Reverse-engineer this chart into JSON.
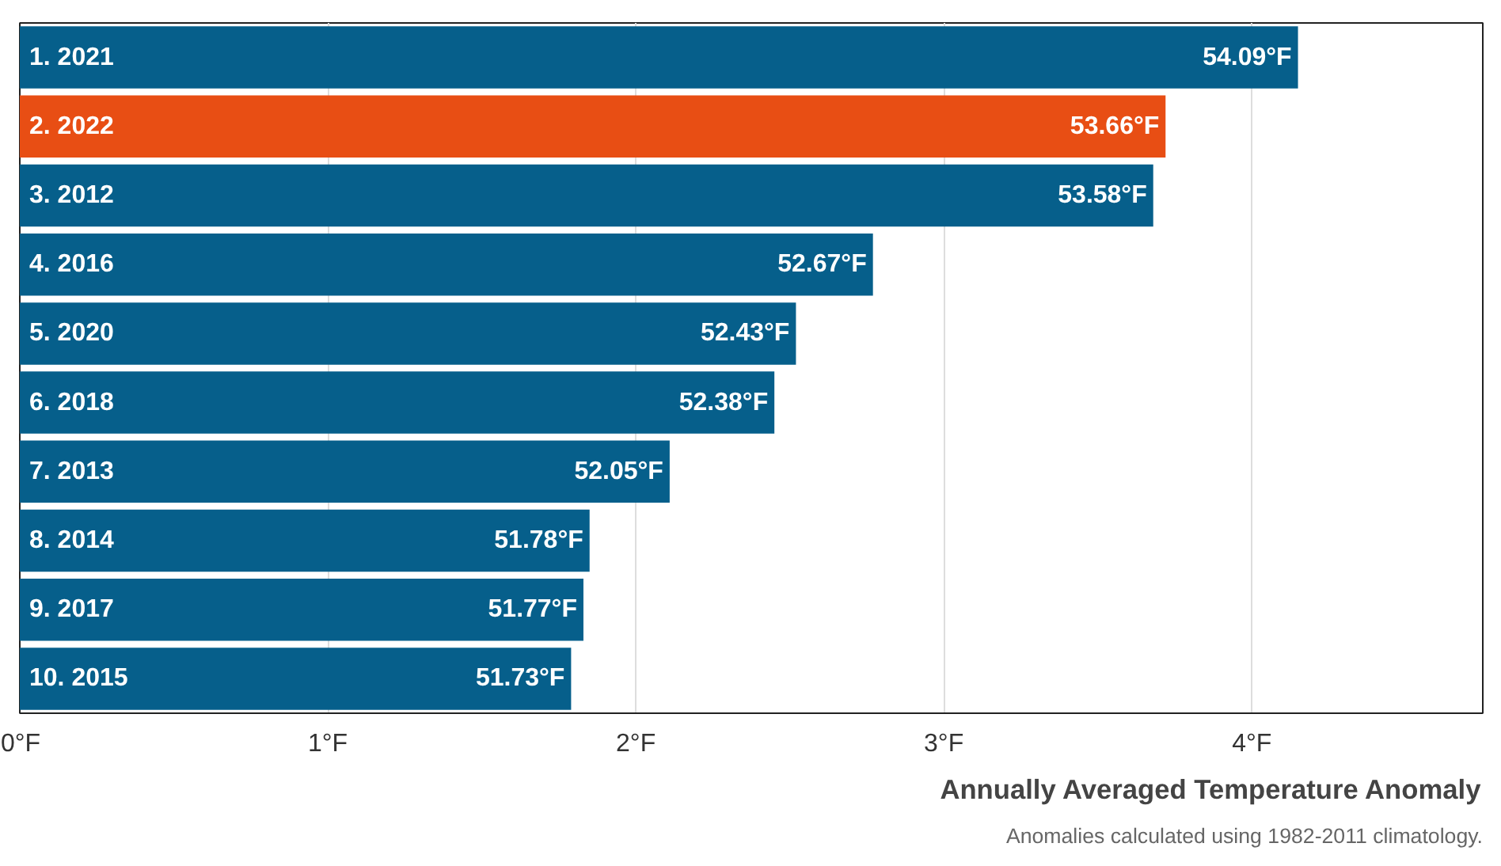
{
  "chart_data": {
    "type": "bar",
    "orientation": "horizontal",
    "categories": [
      "1.  2021",
      "2.  2022",
      "3.  2012",
      "4.  2016",
      "5.  2020",
      "6.  2018",
      "7.  2013",
      "8.  2014",
      "9.  2017",
      "10.  2015"
    ],
    "values": [
      4.15,
      3.72,
      3.68,
      2.77,
      2.52,
      2.45,
      2.11,
      1.85,
      1.83,
      1.79
    ],
    "colors": [
      "#065f8b",
      "#e84e14",
      "#065f8b",
      "#065f8b",
      "#065f8b",
      "#065f8b",
      "#065f8b",
      "#065f8b",
      "#065f8b",
      "#065f8b"
    ],
    "xlabel": "Annually Averaged Temperature Anomaly",
    "xlim": [
      0,
      4.75
    ],
    "xticks": [
      {
        "value": 0,
        "label": "0°F"
      },
      {
        "value": 1,
        "label": "1°F"
      },
      {
        "value": 2,
        "label": "2°F"
      },
      {
        "value": 3,
        "label": "3°F"
      },
      {
        "value": 4,
        "label": "4°F"
      }
    ],
    "grid": "x",
    "annotations": [
      {
        "text": "54.09°F",
        "x": 4.15,
        "y": "1.  2021"
      },
      {
        "text": "53.66°F",
        "x": 3.72,
        "y": "2.  2022"
      },
      {
        "text": "53.58°F",
        "x": 3.68,
        "y": "3.  2012"
      },
      {
        "text": "52.67°F",
        "x": 2.77,
        "y": "4.  2016"
      },
      {
        "text": "52.43°F",
        "x": 2.52,
        "y": "5.  2020"
      },
      {
        "text": "52.38°F",
        "x": 2.45,
        "y": "6.  2018"
      },
      {
        "text": "52.05°F",
        "x": 2.11,
        "y": "7.  2013"
      },
      {
        "text": "51.78°F",
        "x": 1.85,
        "y": "8.  2014"
      },
      {
        "text": "51.77°F",
        "x": 1.83,
        "y": "9.  2017"
      },
      {
        "text": "51.73°F",
        "x": 1.79,
        "y": "10.  2015"
      },
      "Anomalies calculated using 1982-2011 climatology."
    ]
  }
}
